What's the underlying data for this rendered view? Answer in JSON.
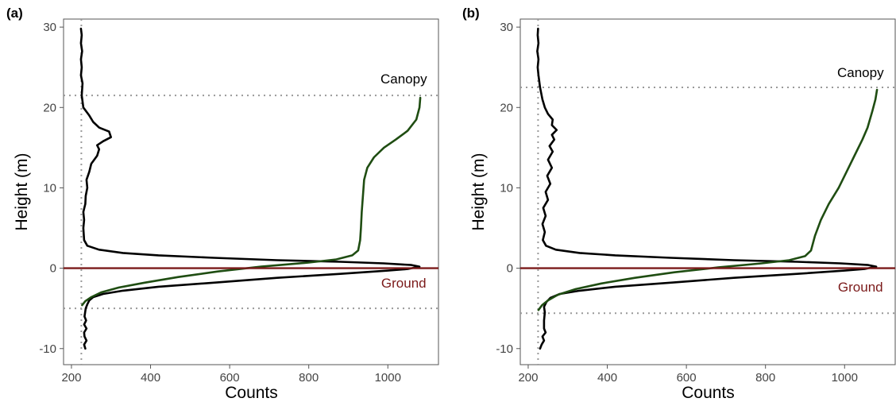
{
  "chart_data": [
    {
      "type": "line",
      "panel_label": "(a)",
      "xlabel": "Counts",
      "ylabel": "Height (m)",
      "xlim": [
        180,
        1130
      ],
      "ylim": [
        -12,
        31
      ],
      "xticks": [
        200,
        400,
        600,
        800,
        1000
      ],
      "yticks": [
        -10,
        0,
        10,
        20,
        30
      ],
      "grid": false,
      "legend": "none",
      "annotations": [
        {
          "text": "Canopy",
          "x": 1000,
          "y": 23,
          "color": "#000000"
        },
        {
          "text": "Ground",
          "x": 1000,
          "y": -2.4,
          "color": "#7b1a1a"
        }
      ],
      "reference_lines": {
        "canopy_height": 21.5,
        "ground_height": 0,
        "lower_bound_height": -5,
        "noise_level_counts": 225
      },
      "colors": {
        "waveform": "#000000",
        "cumulative": "#1f4d12",
        "ground": "#7b1a1a",
        "guides": "#999999"
      },
      "series": [
        {
          "color": "#000000",
          "points": [
            [
              235,
              -10
            ],
            [
              232,
              -9.5
            ],
            [
              238,
              -9
            ],
            [
              233,
              -8.5
            ],
            [
              232,
              -8
            ],
            [
              238,
              -7.5
            ],
            [
              232,
              -7
            ],
            [
              237,
              -6.5
            ],
            [
              233,
              -6
            ],
            [
              236,
              -5
            ],
            [
              240,
              -4.5
            ],
            [
              245,
              -4
            ],
            [
              255,
              -3.6
            ],
            [
              280,
              -3.2
            ],
            [
              330,
              -2.8
            ],
            [
              420,
              -2.3
            ],
            [
              560,
              -1.8
            ],
            [
              720,
              -1.2
            ],
            [
              880,
              -0.7
            ],
            [
              1000,
              -0.3
            ],
            [
              1050,
              -0.1
            ],
            [
              1080,
              0.2
            ],
            [
              1060,
              0.4
            ],
            [
              990,
              0.6
            ],
            [
              880,
              0.8
            ],
            [
              720,
              1.0
            ],
            [
              560,
              1.3
            ],
            [
              420,
              1.6
            ],
            [
              330,
              1.9
            ],
            [
              270,
              2.3
            ],
            [
              240,
              2.8
            ],
            [
              232,
              3.5
            ],
            [
              230,
              5
            ],
            [
              232,
              6
            ],
            [
              230,
              7
            ],
            [
              235,
              8
            ],
            [
              236,
              9
            ],
            [
              240,
              10
            ],
            [
              238,
              11
            ],
            [
              245,
              12
            ],
            [
              250,
              13
            ],
            [
              265,
              14
            ],
            [
              270,
              14.8
            ],
            [
              265,
              15.3
            ],
            [
              280,
              15.8
            ],
            [
              300,
              16.3
            ],
            [
              295,
              17
            ],
            [
              270,
              17.5
            ],
            [
              255,
              18.2
            ],
            [
              245,
              19
            ],
            [
              230,
              20
            ],
            [
              226,
              21.5
            ],
            [
              228,
              23
            ],
            [
              224,
              24
            ],
            [
              226,
              25
            ],
            [
              224,
              26
            ],
            [
              227,
              27
            ],
            [
              224,
              28
            ],
            [
              226,
              29
            ],
            [
              224,
              29.8
            ]
          ]
        },
        {
          "color": "#1f4d12",
          "points": [
            [
              227,
              -4.6
            ],
            [
              235,
              -4.1
            ],
            [
              250,
              -3.6
            ],
            [
              275,
              -3.0
            ],
            [
              320,
              -2.4
            ],
            [
              385,
              -1.8
            ],
            [
              470,
              -1.1
            ],
            [
              570,
              -0.4
            ],
            [
              680,
              0.2
            ],
            [
              800,
              0.7
            ],
            [
              870,
              1.1
            ],
            [
              910,
              1.6
            ],
            [
              925,
              2.2
            ],
            [
              930,
              3.5
            ],
            [
              932,
              5
            ],
            [
              934,
              7
            ],
            [
              937,
              9
            ],
            [
              940,
              11
            ],
            [
              948,
              12.5
            ],
            [
              965,
              13.8
            ],
            [
              990,
              15
            ],
            [
              1020,
              16
            ],
            [
              1050,
              17.1
            ],
            [
              1072,
              18.5
            ],
            [
              1080,
              20
            ],
            [
              1082,
              21.2
            ]
          ]
        }
      ]
    },
    {
      "type": "line",
      "panel_label": "(b)",
      "xlabel": "Counts",
      "ylabel": "Height (m)",
      "xlim": [
        180,
        1130
      ],
      "ylim": [
        -12,
        31
      ],
      "xticks": [
        200,
        400,
        600,
        800,
        1000
      ],
      "yticks": [
        -10,
        0,
        10,
        20,
        30
      ],
      "grid": false,
      "legend": "none",
      "annotations": [
        {
          "text": "Canopy",
          "x": 1000,
          "y": 23.8,
          "color": "#000000"
        },
        {
          "text": "Ground",
          "x": 1000,
          "y": -2.9,
          "color": "#7b1a1a"
        }
      ],
      "reference_lines": {
        "canopy_height": 22.5,
        "ground_height": 0,
        "lower_bound_height": -5.6,
        "noise_level_counts": 225
      },
      "colors": {
        "waveform": "#000000",
        "cumulative": "#1f4d12",
        "ground": "#7b1a1a",
        "guides": "#999999"
      },
      "series": [
        {
          "color": "#000000",
          "points": [
            [
              230,
              -10
            ],
            [
              234,
              -9.5
            ],
            [
              240,
              -9
            ],
            [
              236,
              -8.5
            ],
            [
              244,
              -8
            ],
            [
              240,
              -7.5
            ],
            [
              240,
              -6.5
            ],
            [
              242,
              -5.5
            ],
            [
              240,
              -4.8
            ],
            [
              246,
              -4.2
            ],
            [
              256,
              -3.7
            ],
            [
              280,
              -3.2
            ],
            [
              330,
              -2.8
            ],
            [
              420,
              -2.3
            ],
            [
              560,
              -1.8
            ],
            [
              720,
              -1.2
            ],
            [
              880,
              -0.7
            ],
            [
              1000,
              -0.3
            ],
            [
              1050,
              -0.1
            ],
            [
              1080,
              0.2
            ],
            [
              1060,
              0.4
            ],
            [
              990,
              0.6
            ],
            [
              880,
              0.8
            ],
            [
              720,
              1.0
            ],
            [
              560,
              1.3
            ],
            [
              420,
              1.6
            ],
            [
              330,
              1.9
            ],
            [
              270,
              2.3
            ],
            [
              245,
              2.8
            ],
            [
              237,
              3.5
            ],
            [
              242,
              4.5
            ],
            [
              236,
              5.5
            ],
            [
              244,
              6.5
            ],
            [
              238,
              7.5
            ],
            [
              250,
              8.5
            ],
            [
              244,
              9.5
            ],
            [
              256,
              10.5
            ],
            [
              248,
              11.5
            ],
            [
              260,
              12.5
            ],
            [
              250,
              13.5
            ],
            [
              262,
              14.5
            ],
            [
              254,
              15.2
            ],
            [
              266,
              16
            ],
            [
              260,
              16.6
            ],
            [
              272,
              17.2
            ],
            [
              260,
              17.8
            ],
            [
              262,
              18.5
            ],
            [
              250,
              19.2
            ],
            [
              242,
              20
            ],
            [
              236,
              21
            ],
            [
              230,
              22.5
            ],
            [
              226,
              24
            ],
            [
              224,
              25
            ],
            [
              226,
              26
            ],
            [
              223,
              27
            ],
            [
              226,
              28
            ],
            [
              224,
              29
            ],
            [
              225,
              29.8
            ]
          ]
        },
        {
          "color": "#1f4d12",
          "points": [
            [
              226,
              -5.2
            ],
            [
              235,
              -4.6
            ],
            [
              250,
              -4.0
            ],
            [
              275,
              -3.3
            ],
            [
              320,
              -2.6
            ],
            [
              385,
              -1.9
            ],
            [
              470,
              -1.2
            ],
            [
              570,
              -0.5
            ],
            [
              680,
              0.1
            ],
            [
              790,
              0.6
            ],
            [
              860,
              1.0
            ],
            [
              900,
              1.5
            ],
            [
              915,
              2.2
            ],
            [
              925,
              4
            ],
            [
              940,
              6
            ],
            [
              960,
              8
            ],
            [
              985,
              10
            ],
            [
              1005,
              12
            ],
            [
              1025,
              14
            ],
            [
              1045,
              16
            ],
            [
              1058,
              17.5
            ],
            [
              1070,
              19.5
            ],
            [
              1078,
              21
            ],
            [
              1082,
              22.2
            ]
          ]
        }
      ]
    }
  ]
}
